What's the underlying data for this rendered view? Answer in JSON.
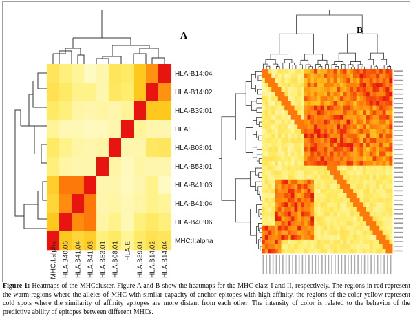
{
  "panel_a": {
    "label": "A",
    "row_labels": [
      "HLA-B14:04",
      "HLA-B14:02",
      "HLA-B39:01",
      "HLA:E",
      "HLA-B08:01",
      "HLA-B53:01",
      "HLA-B41:03",
      "HLA-B41:04",
      "HLA-B40:06",
      "MHC:I:alpha"
    ],
    "col_labels": [
      "MHC.I.alpha",
      "HLA.B40.06",
      "HLA.B41.04",
      "HLA.B41.03",
      "HLA.B53.01",
      "HLA.B08.01",
      "HLA.E",
      "HLA.B39.01",
      "HLA.B14.02",
      "HLA.B14.04"
    ]
  },
  "panel_b": {
    "label": "B"
  },
  "caption": {
    "label": "Figure 1:",
    "text": "Heatmaps of the MHCcluster. Figure A and B show the heatmaps for the MHC class I and II, respectively. The regions in red represent the warm regions where the alleles of MHC with similar capacity of anchor epitopes with high affinity, the regions of the color yellow represent cold spots where the similarity of affinity epitopes are more distant from each other. The intensity of color is related to the behavior of the predictive ability of epitopes between different MHCs."
  },
  "chart_data": [
    {
      "type": "heatmap",
      "title": "A",
      "rows": [
        "HLA-B14:04",
        "HLA-B14:02",
        "HLA-B39:01",
        "HLA:E",
        "HLA-B08:01",
        "HLA-B53:01",
        "HLA-B41:03",
        "HLA-B41:04",
        "HLA-B40:06",
        "MHC:I:alpha"
      ],
      "columns": [
        "MHC.I.alpha",
        "HLA.B40.06",
        "HLA.B41.04",
        "HLA.B41.03",
        "HLA.B53.01",
        "HLA.B08.01",
        "HLA.E",
        "HLA.B39.01",
        "HLA.B14.02",
        "HLA.B14.04"
      ],
      "scale": "0 = light yellow (distant) to 1 = red (similar)",
      "values": [
        [
          0.32,
          0.22,
          0.15,
          0.05,
          0.1,
          0.32,
          0.28,
          0.55,
          0.75,
          1.0
        ],
        [
          0.35,
          0.28,
          0.18,
          0.18,
          0.1,
          0.3,
          0.25,
          0.55,
          1.0,
          0.75
        ],
        [
          0.28,
          0.22,
          0.12,
          0.1,
          0.12,
          0.1,
          0.15,
          1.0,
          0.55,
          0.55
        ],
        [
          0.15,
          0.08,
          0.08,
          0.06,
          0.06,
          0.1,
          1.0,
          0.15,
          0.1,
          0.1
        ],
        [
          0.28,
          0.18,
          0.12,
          0.1,
          0.12,
          1.0,
          0.1,
          0.1,
          0.3,
          0.32
        ],
        [
          0.22,
          0.12,
          0.1,
          0.1,
          1.0,
          0.12,
          0.06,
          0.12,
          0.1,
          0.1
        ],
        [
          0.5,
          0.85,
          0.85,
          1.0,
          0.1,
          0.1,
          0.06,
          0.1,
          0.18,
          0.05
        ],
        [
          0.45,
          0.78,
          1.0,
          0.85,
          0.1,
          0.12,
          0.08,
          0.12,
          0.18,
          0.15
        ],
        [
          0.55,
          1.0,
          0.78,
          0.85,
          0.12,
          0.18,
          0.08,
          0.22,
          0.28,
          0.22
        ],
        [
          1.0,
          0.55,
          0.45,
          0.5,
          0.22,
          0.28,
          0.15,
          0.28,
          0.35,
          0.32
        ]
      ]
    },
    {
      "type": "heatmap",
      "title": "B",
      "rows": [],
      "columns": [],
      "description": "MHC class II heatmap with hierarchical dendrograms; red clusters top-right and bottom-left, yellow elsewhere"
    }
  ]
}
